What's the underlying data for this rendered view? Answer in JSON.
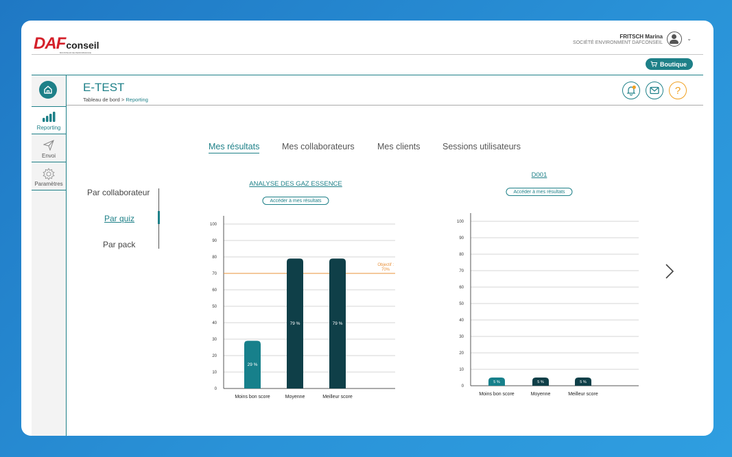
{
  "header": {
    "logo_daf": "DAF",
    "logo_conseil": "conseil",
    "logo_tagline": "BOOSTEUR DE PERFORMANCE",
    "user_name": "FRITSCH Marina",
    "user_company": "SOCIÉTÉ ENVIRONMENT DAFCONSEIL",
    "boutique_label": "Boutique"
  },
  "sidebar": {
    "items": [
      {
        "label": "Reporting",
        "icon": "bar-chart-icon"
      },
      {
        "label": "Envoi",
        "icon": "send-icon"
      },
      {
        "label": "Paramètres",
        "icon": "gear-icon"
      }
    ]
  },
  "page": {
    "title": "E-TEST",
    "breadcrumb_root": "Tableau de bord",
    "breadcrumb_sep": " > ",
    "breadcrumb_current": "Reporting"
  },
  "tabs": [
    {
      "label": "Mes résultats",
      "active": true
    },
    {
      "label": "Mes collaborateurs",
      "active": false
    },
    {
      "label": "Mes clients",
      "active": false
    },
    {
      "label": "Sessions utilisateurs",
      "active": false
    }
  ],
  "submenu": [
    {
      "label": "Par collaborateur",
      "active": false
    },
    {
      "label": "Par quiz",
      "active": true
    },
    {
      "label": "Par pack",
      "active": false
    }
  ],
  "colors": {
    "accent": "#1e8088",
    "bar_light": "#17808b",
    "bar_dark": "#0f3f48",
    "objective": "#e8913a"
  },
  "chart_data": [
    {
      "type": "bar",
      "title": "ANALYSE DES GAZ ESSENCE",
      "link_label": "Accéder à mes résultats",
      "categories": [
        "Moins bon score",
        "Moyenne",
        "Meilleur score"
      ],
      "values": [
        29,
        79,
        79
      ],
      "value_labels": [
        "29 %",
        "79 %",
        "79 %"
      ],
      "ylim": [
        0,
        100
      ],
      "yticks": [
        0,
        10,
        20,
        30,
        40,
        50,
        60,
        70,
        80,
        90,
        100
      ],
      "objective": {
        "value": 70,
        "label_line1": "Objectif :",
        "label_line2": "70%"
      },
      "grid": true
    },
    {
      "type": "bar",
      "title": "D001",
      "link_label": "Accéder à mes résultats",
      "categories": [
        "Moins bon score",
        "Moyenne",
        "Meilleur score"
      ],
      "values": [
        5,
        5,
        5
      ],
      "value_labels": [
        "5 %",
        "5 %",
        "5 %"
      ],
      "ylim": [
        0,
        100
      ],
      "yticks": [
        0,
        10,
        20,
        30,
        40,
        50,
        60,
        70,
        80,
        90,
        100
      ],
      "grid": true
    }
  ]
}
